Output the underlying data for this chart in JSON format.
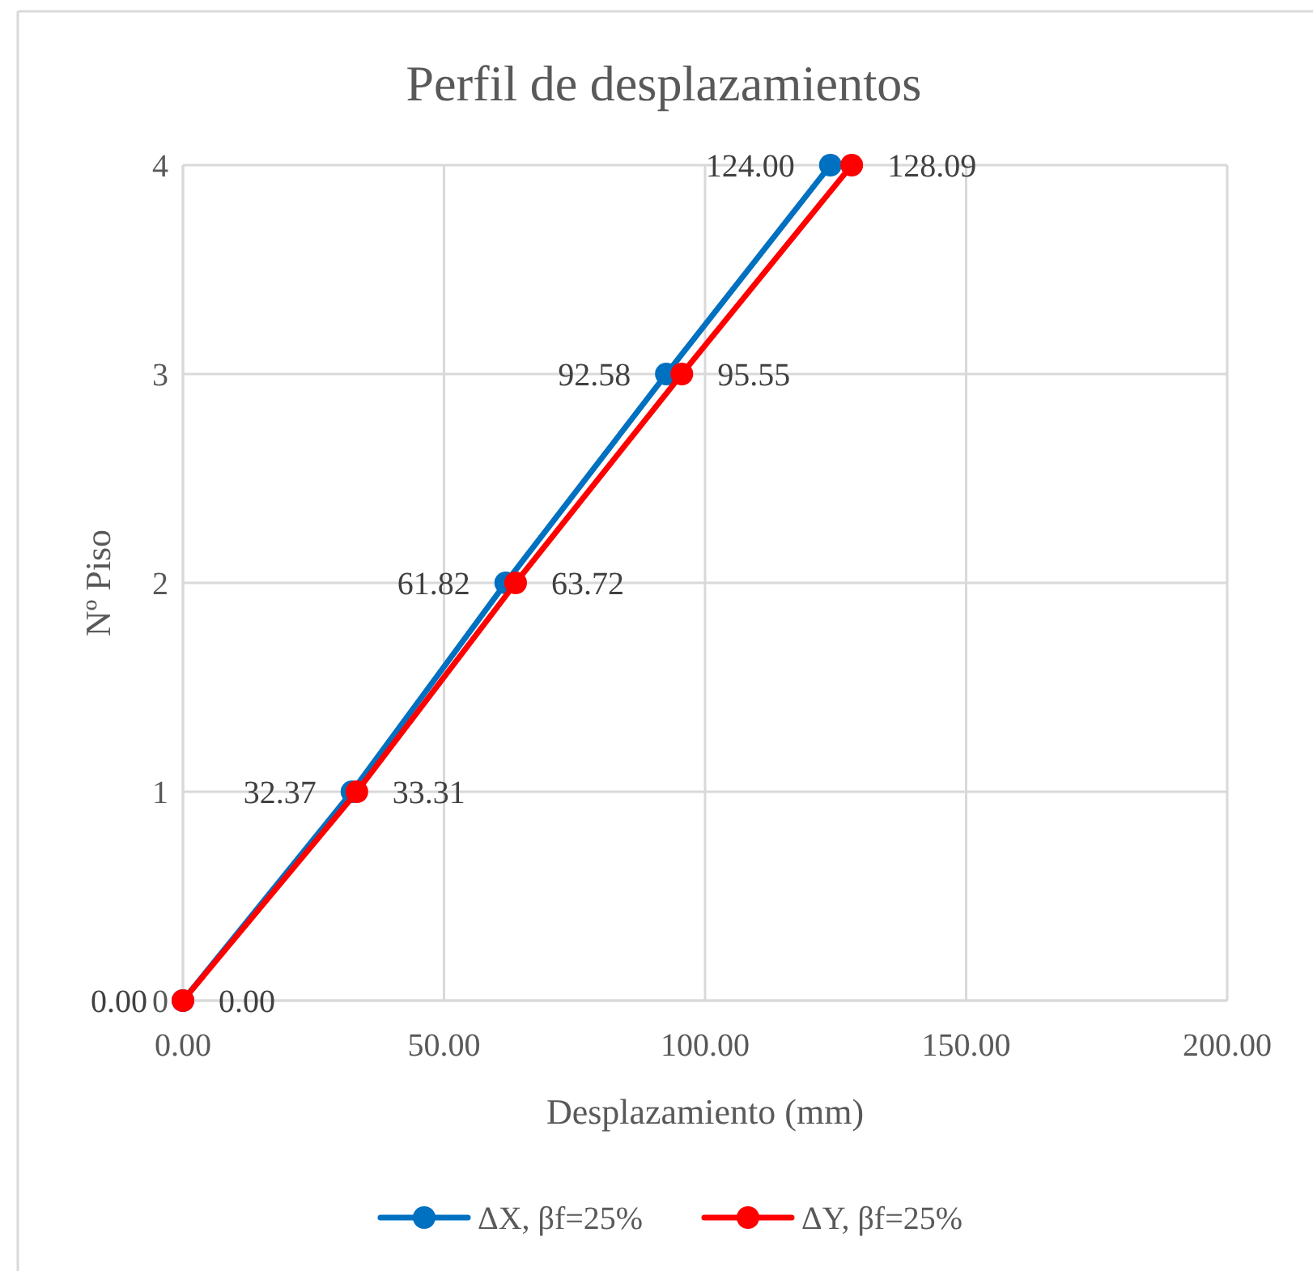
{
  "chart_data": {
    "type": "line",
    "orientation": "horizontal",
    "title": "Perfil de desplazamientos",
    "xlabel": "Desplazamiento (mm)",
    "ylabel": "Nº Piso",
    "categories": [
      "4",
      "3",
      "2",
      "1",
      "0"
    ],
    "xlim": [
      0,
      200
    ],
    "xticks": [
      {
        "value": 0,
        "label": "0.00"
      },
      {
        "value": 50,
        "label": "50.00"
      },
      {
        "value": 100,
        "label": "100.00"
      },
      {
        "value": 150,
        "label": "150.00"
      },
      {
        "value": 200,
        "label": "200.00"
      }
    ],
    "grid": true,
    "legend": "bottom",
    "marker": "circle",
    "line_style": "solid",
    "series": [
      {
        "name": "ΔX, βf=25%",
        "color": "#0070c0",
        "values": [
          124.0,
          92.58,
          61.82,
          32.37,
          0
        ],
        "value_labels": [
          "124.00",
          "92.58",
          "61.82",
          "32.37",
          "0.00"
        ]
      },
      {
        "name": "ΔY, βf=25%",
        "color": "#ff0000",
        "values": [
          128.09,
          95.55,
          63.72,
          33.31,
          0
        ],
        "value_labels": [
          "128.09",
          "95.55",
          "63.72",
          "33.31",
          "0.00"
        ]
      }
    ]
  }
}
